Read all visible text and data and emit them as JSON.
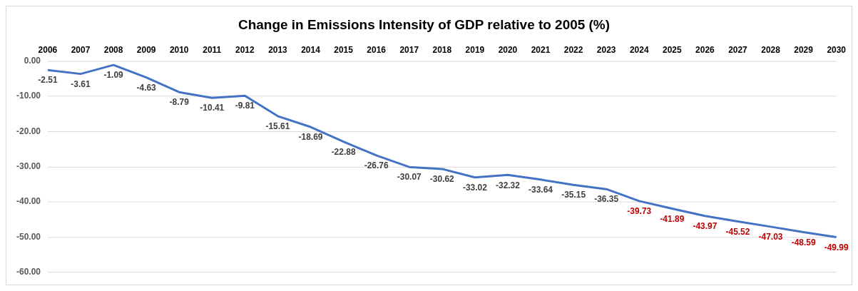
{
  "chart_data": {
    "type": "line",
    "title": "Change in Emissions Intensity of GDP relative to 2005 (%)",
    "categories": [
      "2006",
      "2007",
      "2008",
      "2009",
      "2010",
      "2011",
      "2012",
      "2013",
      "2014",
      "2015",
      "2016",
      "2017",
      "2018",
      "2019",
      "2020",
      "2021",
      "2022",
      "2023",
      "2024",
      "2025",
      "2026",
      "2027",
      "2028",
      "2029",
      "2030"
    ],
    "series": [
      {
        "color": "#4472c4",
        "values": [
          -2.51,
          -3.61,
          -1.09,
          -4.63,
          -8.79,
          -10.41,
          -9.81,
          -15.61,
          -18.69,
          -22.88,
          -26.76,
          -30.07,
          -30.62,
          -33.02,
          -32.32,
          -33.64,
          -35.15,
          -36.35,
          -39.73,
          -41.89,
          -43.97,
          -45.52,
          -47.03,
          -48.59,
          -49.99
        ],
        "colors": [
          "#404040",
          "#404040",
          "#404040",
          "#404040",
          "#404040",
          "#404040",
          "#404040",
          "#404040",
          "#404040",
          "#404040",
          "#404040",
          "#404040",
          "#404040",
          "#404040",
          "#404040",
          "#404040",
          "#404040",
          "#404040",
          "#c00000",
          "#c00000",
          "#c00000",
          "#c00000",
          "#c00000",
          "#c00000",
          "#c00000"
        ]
      }
    ],
    "ylim": [
      -60,
      0
    ],
    "yticks": [
      {
        "value": -60,
        "label": "-60.00"
      },
      {
        "value": -50,
        "label": "-50.00"
      },
      {
        "value": -40,
        "label": "-40.00"
      },
      {
        "value": -30,
        "label": "-30.00"
      },
      {
        "value": -20,
        "label": "-20.00"
      },
      {
        "value": -10,
        "label": "-10.00"
      },
      {
        "value": 0,
        "label": "0.00"
      }
    ],
    "grid": "y",
    "legend": false,
    "marker": "none",
    "line_style": "solid",
    "data_labels": true
  }
}
